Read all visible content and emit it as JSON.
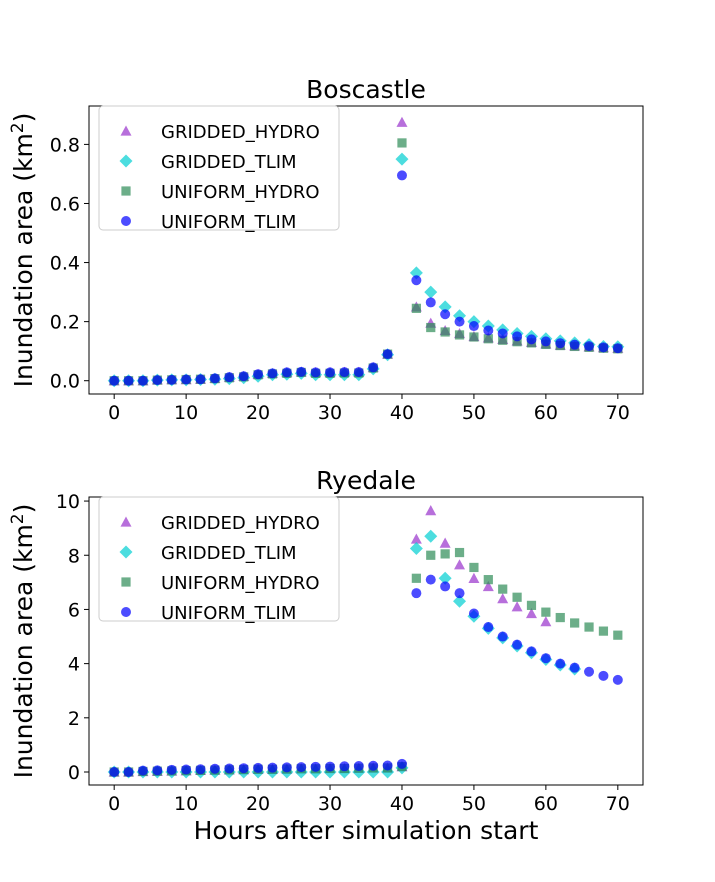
{
  "figure": {
    "xlabel": "Hours after simulation start"
  },
  "colors": {
    "GRIDDED_HYDRO": "#9932cc",
    "GRIDDED_TLIM": "#00ced1",
    "UNIFORM_HYDRO": "#2e8b57",
    "UNIFORM_TLIM": "#0000ff"
  },
  "chart_data": [
    {
      "type": "scatter",
      "title": "Boscastle",
      "xlabel": "",
      "ylabel": "Inundation area (km²)",
      "ylabel_main": "Inundation area (km",
      "ylabel_sup": "2",
      "ylabel_close": ")",
      "xlim": [
        -3.5,
        73.5
      ],
      "ylim": [
        -0.045,
        0.93
      ],
      "xticks": [
        0,
        10,
        20,
        30,
        40,
        50,
        60,
        70
      ],
      "xtick_labels": [
        "0",
        "10",
        "20",
        "30",
        "40",
        "50",
        "60",
        "70"
      ],
      "yticks": [
        0.0,
        0.2,
        0.4,
        0.6,
        0.8
      ],
      "ytick_labels": [
        "0.0",
        "0.2",
        "0.4",
        "0.6",
        "0.8"
      ],
      "legend": "top-left",
      "grid": false,
      "x": [
        0,
        2,
        4,
        6,
        8,
        10,
        12,
        14,
        16,
        18,
        20,
        22,
        24,
        26,
        28,
        30,
        32,
        34,
        36,
        38,
        40,
        42,
        44,
        46,
        48,
        50,
        52,
        54,
        56,
        58,
        60,
        62,
        64,
        66,
        68,
        70
      ],
      "series": [
        {
          "name": "GRIDDED_HYDRO",
          "marker": "triangle",
          "values": [
            0.0,
            0.0,
            0.0,
            0.003,
            0.004,
            0.004,
            0.005,
            0.008,
            0.012,
            0.015,
            0.022,
            0.025,
            0.028,
            0.03,
            0.028,
            0.028,
            0.029,
            0.029,
            0.045,
            0.09,
            0.875,
            0.25,
            0.195,
            0.17,
            0.16,
            0.15,
            0.145,
            0.14,
            0.135,
            0.13,
            0.125,
            0.12,
            0.118,
            0.115,
            0.112,
            0.11
          ]
        },
        {
          "name": "GRIDDED_TLIM",
          "marker": "diamond",
          "values": [
            0.0,
            0.0,
            0.0,
            0.002,
            0.003,
            0.003,
            0.004,
            0.005,
            0.007,
            0.01,
            0.015,
            0.02,
            0.022,
            0.025,
            0.02,
            0.02,
            0.02,
            0.02,
            0.04,
            0.088,
            0.75,
            0.365,
            0.3,
            0.25,
            0.22,
            0.2,
            0.185,
            0.172,
            0.16,
            0.15,
            0.142,
            0.135,
            0.128,
            0.122,
            0.116,
            0.115
          ]
        },
        {
          "name": "UNIFORM_HYDRO",
          "marker": "square",
          "values": [
            0.0,
            0.0,
            0.0,
            0.002,
            0.003,
            0.004,
            0.005,
            0.007,
            0.01,
            0.013,
            0.02,
            0.023,
            0.025,
            0.028,
            0.025,
            0.025,
            0.026,
            0.026,
            0.043,
            0.09,
            0.805,
            0.245,
            0.18,
            0.165,
            0.155,
            0.148,
            0.142,
            0.137,
            0.132,
            0.128,
            0.123,
            0.119,
            0.116,
            0.113,
            0.11,
            0.108
          ]
        },
        {
          "name": "UNIFORM_TLIM",
          "marker": "circle",
          "values": [
            0.0,
            0.0,
            0.0,
            0.002,
            0.003,
            0.004,
            0.005,
            0.008,
            0.012,
            0.015,
            0.022,
            0.025,
            0.028,
            0.03,
            0.028,
            0.028,
            0.029,
            0.029,
            0.045,
            0.09,
            0.695,
            0.34,
            0.265,
            0.225,
            0.2,
            0.185,
            0.17,
            0.16,
            0.15,
            0.14,
            0.133,
            0.127,
            0.122,
            0.117,
            0.113,
            0.11
          ]
        }
      ]
    },
    {
      "type": "scatter",
      "title": "Ryedale",
      "xlabel": "Hours after simulation start",
      "ylabel": "Inundation area (km²)",
      "ylabel_main": "Inundation area (km",
      "ylabel_sup": "2",
      "ylabel_close": ")",
      "xlim": [
        -3.5,
        73.5
      ],
      "ylim": [
        -0.48,
        10.15
      ],
      "xticks": [
        0,
        10,
        20,
        30,
        40,
        50,
        60,
        70
      ],
      "xtick_labels": [
        "0",
        "10",
        "20",
        "30",
        "40",
        "50",
        "60",
        "70"
      ],
      "yticks": [
        0,
        2,
        4,
        6,
        8,
        10
      ],
      "ytick_labels": [
        "0",
        "2",
        "4",
        "6",
        "8",
        "10"
      ],
      "legend": "top-left",
      "grid": false,
      "x": [
        0,
        2,
        4,
        6,
        8,
        10,
        12,
        14,
        16,
        18,
        20,
        22,
        24,
        26,
        28,
        30,
        32,
        34,
        36,
        38,
        40,
        42,
        44,
        46,
        48,
        50,
        52,
        54,
        56,
        58,
        60,
        62,
        64,
        66,
        68,
        70
      ],
      "series": [
        {
          "name": "GRIDDED_HYDRO",
          "marker": "triangle",
          "values": [
            0.0,
            0.0,
            0.02,
            0.03,
            0.04,
            0.05,
            0.06,
            0.07,
            0.08,
            0.09,
            0.1,
            0.1,
            0.11,
            0.12,
            0.12,
            0.13,
            0.13,
            0.14,
            0.15,
            0.15,
            0.2,
            8.6,
            9.65,
            8.45,
            7.65,
            7.15,
            6.85,
            6.4,
            6.1,
            5.85,
            5.55,
            null,
            null,
            null,
            null,
            null
          ]
        },
        {
          "name": "GRIDDED_TLIM",
          "marker": "diamond",
          "values": [
            0.0,
            0.0,
            0.0,
            0.0,
            0.0,
            0.0,
            0.0,
            0.0,
            0.0,
            0.0,
            0.0,
            0.0,
            0.0,
            0.0,
            0.0,
            0.0,
            0.0,
            0.0,
            0.0,
            0.0,
            0.15,
            8.25,
            8.7,
            7.15,
            6.3,
            5.75,
            5.3,
            4.95,
            4.65,
            4.4,
            4.15,
            3.95,
            3.8,
            null,
            null,
            null
          ]
        },
        {
          "name": "UNIFORM_HYDRO",
          "marker": "square",
          "values": [
            0.0,
            0.0,
            0.02,
            0.03,
            0.04,
            0.05,
            0.06,
            0.07,
            0.08,
            0.09,
            0.1,
            0.1,
            0.11,
            0.12,
            0.12,
            0.13,
            0.13,
            0.14,
            0.15,
            0.15,
            0.2,
            7.15,
            8.0,
            8.05,
            8.1,
            7.55,
            7.1,
            6.75,
            6.45,
            6.15,
            5.9,
            5.7,
            5.5,
            5.35,
            5.2,
            5.05
          ]
        },
        {
          "name": "UNIFORM_TLIM",
          "marker": "circle",
          "values": [
            0.0,
            0.0,
            0.05,
            0.06,
            0.08,
            0.09,
            0.1,
            0.12,
            0.13,
            0.14,
            0.15,
            0.16,
            0.17,
            0.18,
            0.19,
            0.2,
            0.21,
            0.22,
            0.23,
            0.24,
            0.3,
            6.6,
            7.1,
            6.85,
            6.6,
            5.85,
            5.35,
            5.0,
            4.7,
            4.45,
            4.2,
            4.0,
            3.85,
            3.7,
            3.55,
            3.4
          ]
        }
      ]
    }
  ]
}
